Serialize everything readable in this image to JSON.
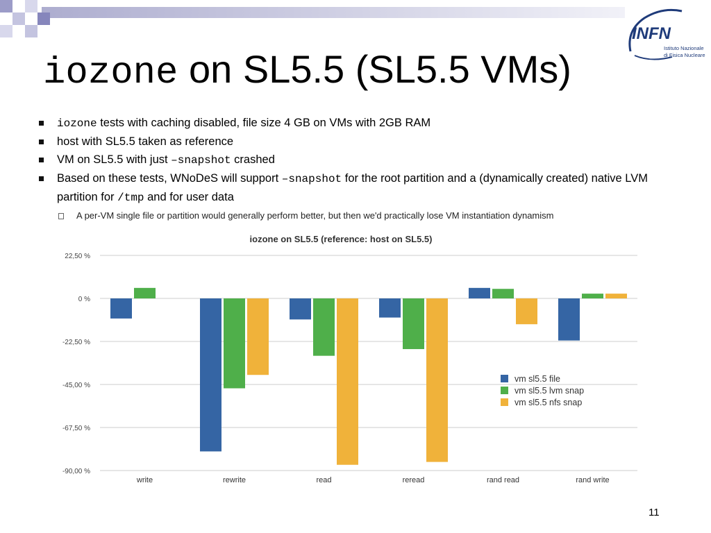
{
  "slide": {
    "title_mono": "iozone",
    "title_rest": " on SL5.5 (SL5.5 VMs)",
    "page_number": "11",
    "logo": {
      "text": "INFN",
      "sub1": "Istituto Nazionale",
      "sub2": "di Fisica Nucleare"
    },
    "bullets": [
      {
        "parts": [
          {
            "t": "iozone",
            "mono": true
          },
          {
            "t": " tests with caching disabled, file size 4 GB on VMs with 2GB RAM"
          }
        ]
      },
      {
        "parts": [
          {
            "t": "host with SL5.5 taken as reference"
          }
        ]
      },
      {
        "parts": [
          {
            "t": "VM on SL5.5 with just "
          },
          {
            "t": "–snapshot",
            "mono": true
          },
          {
            "t": " crashed"
          }
        ]
      },
      {
        "parts": [
          {
            "t": "Based on these tests, WNoDeS will support "
          },
          {
            "t": "–snapshot",
            "mono": true
          },
          {
            "t": " for the root partition and a (dynamically created) native LVM partition for "
          },
          {
            "t": "/tmp",
            "mono": true
          },
          {
            "t": " and for user data"
          }
        ]
      }
    ],
    "sub_bullet": "A per-VM single file or partition would generally perform better, but then we'd practically lose VM instantiation dynamism"
  },
  "chart_data": {
    "type": "bar",
    "title": "iozone on SL5.5 (reference: host on SL5.5)",
    "categories": [
      "write",
      "rewrite",
      "read",
      "reread",
      "rand read",
      "rand write"
    ],
    "series": [
      {
        "name": "vm sl5.5 file",
        "color": "#3565a4",
        "values": [
          -10.5,
          -80.0,
          -11.0,
          -10.0,
          5.5,
          -22.0
        ]
      },
      {
        "name": "vm sl5.5 lvm snap",
        "color": "#4faf4a",
        "values": [
          5.5,
          -47.0,
          -30.0,
          -26.5,
          5.0,
          2.5
        ]
      },
      {
        "name": "vm sl5.5 nfs snap",
        "color": "#f0b23a",
        "values": [
          null,
          -40.0,
          -87.0,
          -85.5,
          -13.5,
          2.5
        ]
      }
    ],
    "yticks": [
      22.5,
      0,
      -22.5,
      -45,
      -67.5,
      -90
    ],
    "ytick_labels": [
      "22,50 %",
      "0 %",
      "-22,50 %",
      "-45,00 %",
      "-67,50 %",
      "-90,00 %"
    ],
    "ylim": [
      -90,
      22.5
    ],
    "xlabel": "",
    "ylabel": "",
    "legend": "right-middle"
  }
}
